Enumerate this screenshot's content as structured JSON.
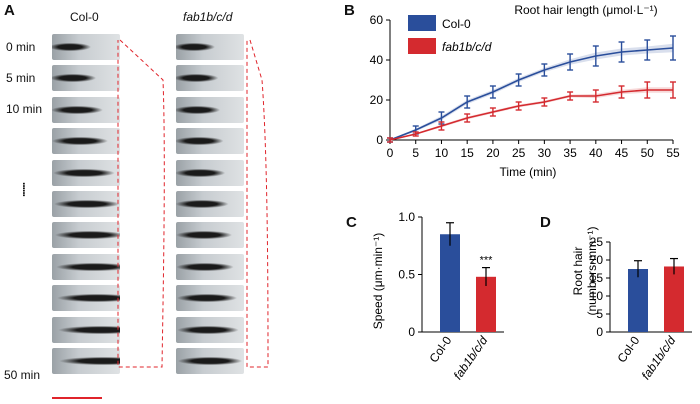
{
  "panels": [
    "A",
    "B",
    "C",
    "D"
  ],
  "panel_a": {
    "genotypes": [
      "Col-0",
      "fab1b/c/d"
    ],
    "time_labels": [
      "0 min",
      "5 min",
      "10 min",
      "50 min"
    ],
    "ellipsis": "......",
    "scale_bar_color": "#e0242b",
    "dashed_color": "#e0242b"
  },
  "chart_data": [
    {
      "panel": "B",
      "type": "line",
      "title": "Root hair length (μmol·L⁻¹)",
      "xlabel": "Time (min)",
      "ylabel": "",
      "x": [
        0,
        5,
        10,
        15,
        20,
        25,
        30,
        35,
        40,
        45,
        50,
        55
      ],
      "xlim": [
        0,
        55
      ],
      "ylim": [
        0,
        60
      ],
      "yticks": [
        0,
        20,
        40,
        60
      ],
      "xticks": [
        0,
        5,
        10,
        15,
        20,
        25,
        30,
        35,
        40,
        45,
        50,
        55
      ],
      "legend_position": "top-left",
      "series": [
        {
          "name": "Col-0",
          "color": "#2a4e9b",
          "values": [
            0,
            5,
            11,
            19,
            24,
            30,
            35,
            39,
            42,
            44,
            45,
            46
          ],
          "errors": [
            1,
            2,
            3,
            3,
            3,
            3,
            3,
            4,
            5,
            5,
            5,
            6
          ]
        },
        {
          "name": "fab1b/c/d",
          "color": "#d42a2f",
          "values": [
            0,
            3,
            7,
            11,
            14,
            17,
            19,
            22,
            22,
            24,
            25,
            25
          ],
          "errors": [
            1,
            1,
            2,
            2,
            2,
            2,
            2,
            2,
            3,
            3,
            4,
            4
          ]
        }
      ]
    },
    {
      "panel": "C",
      "type": "bar",
      "categories": [
        "Col-0",
        "fab1b/c/d"
      ],
      "values": [
        0.85,
        0.48
      ],
      "errors": [
        0.1,
        0.08
      ],
      "colors": [
        "#2a4e9b",
        "#d42a2f"
      ],
      "ylabel": "Speed (μm·min⁻¹)",
      "ylim": [
        0,
        1.0
      ],
      "yticks": [
        "0",
        "0.5",
        "1.0"
      ],
      "annotation": "***"
    },
    {
      "panel": "D",
      "type": "bar",
      "categories": [
        "Col-0",
        "fab1b/c/d"
      ],
      "values": [
        17.5,
        18.2
      ],
      "errors": [
        2.3,
        2.2
      ],
      "colors": [
        "#2a4e9b",
        "#d42a2f"
      ],
      "ylabel_lines": [
        "Root hair",
        "(numbers·mm⁻¹)"
      ],
      "ylim": [
        0,
        25
      ],
      "yticks": [
        "0",
        "5",
        "10",
        "15",
        "20",
        "25"
      ]
    }
  ]
}
